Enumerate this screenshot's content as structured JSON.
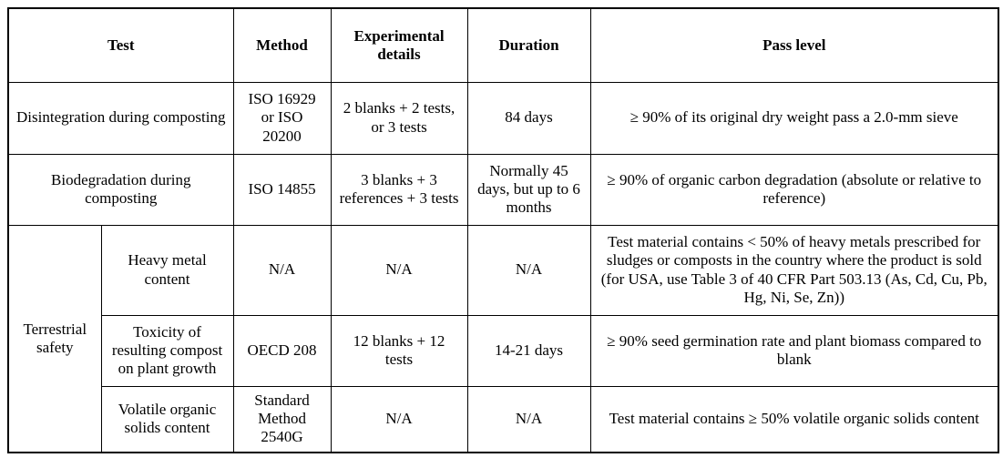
{
  "colors": {
    "background": "#ffffff",
    "border": "#000000",
    "text": "#000000"
  },
  "table": {
    "headers": {
      "test": "Test",
      "method": "Method",
      "details": "Experimental\ndetails",
      "duration": "Duration",
      "pass": "Pass level"
    },
    "row_group": {
      "label": "Terrestrial\nsafety"
    },
    "rows": [
      {
        "test": "Disintegration during composting",
        "method": "ISO 16929\nor ISO\n20200",
        "details": "2 blanks + 2 tests,\nor 3 tests",
        "duration": "84 days",
        "pass": "≥ 90% of its original dry weight pass a 2.0-mm sieve"
      },
      {
        "test": "Biodegradation during\ncomposting",
        "method": "ISO 14855",
        "details": "3 blanks + 3\nreferences + 3 tests",
        "duration": "Normally 45\ndays, but up to 6\nmonths",
        "pass": "≥ 90% of organic carbon degradation (absolute or relative to\nreference)"
      },
      {
        "subtest": "Heavy metal\ncontent",
        "method": "N/A",
        "details": "N/A",
        "duration": "N/A",
        "pass": "Test material contains < 50% of heavy metals prescribed for\nsludges or composts in the country where the product is sold\n(for USA, use Table 3 of 40 CFR Part 503.13 (As, Cd, Cu, Pb,\nHg, Ni, Se, Zn))"
      },
      {
        "subtest": "Toxicity of\nresulting compost\non plant growth",
        "method": "OECD 208",
        "details": "12 blanks + 12\ntests",
        "duration": "14-21 days",
        "pass": "≥ 90% seed germination rate and plant biomass compared to\nblank"
      },
      {
        "subtest": "Volatile organic\nsolids content",
        "method": "Standard\nMethod\n2540G",
        "details": "N/A",
        "duration": "N/A",
        "pass": "Test material contains ≥ 50% volatile organic solids content"
      }
    ]
  }
}
